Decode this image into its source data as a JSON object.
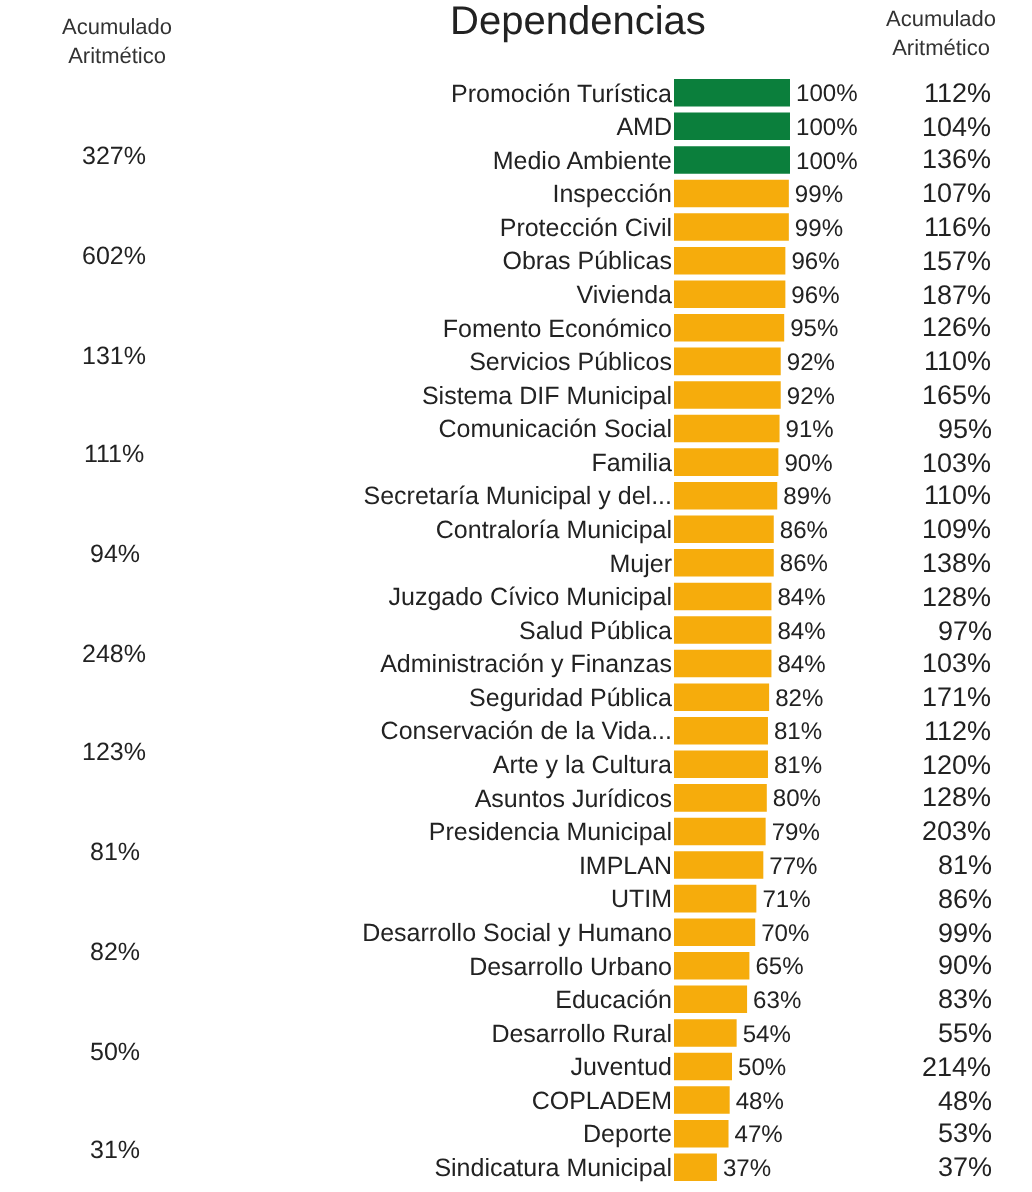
{
  "chart_data": {
    "type": "bar",
    "orientation": "horizontal",
    "title": "Dependencias",
    "categories": [
      "Promoción Turística",
      "AMD",
      "Medio Ambiente",
      "Inspección",
      "Protección Civil",
      "Obras Públicas",
      "Vivienda",
      "Fomento Económico",
      "Servicios Públicos",
      "Sistema DIF Municipal",
      "Comunicación Social",
      "Familia",
      "Secretaría Municipal y del...",
      "Contraloría Municipal",
      "Mujer",
      "Juzgado Cívico Municipal",
      "Salud Pública",
      "Administración y Finanzas",
      "Seguridad Pública",
      "Conservación de la Vida...",
      "Arte y la Cultura",
      "Asuntos Jurídicos",
      "Presidencia Municipal",
      "IMPLAN",
      "UTIM",
      "Desarrollo Social y Humano",
      "Desarrollo Urbano",
      "Educación",
      "Desarrollo Rural",
      "Juventud",
      "COPLADEM",
      "Deporte",
      "Sindicatura Municipal"
    ],
    "values": [
      100,
      100,
      100,
      99,
      99,
      96,
      96,
      95,
      92,
      92,
      91,
      90,
      89,
      86,
      86,
      84,
      84,
      84,
      82,
      81,
      81,
      80,
      79,
      77,
      71,
      70,
      65,
      63,
      54,
      50,
      48,
      47,
      37
    ],
    "value_labels": [
      "100%",
      "100%",
      "100%",
      "99%",
      "99%",
      "96%",
      "96%",
      "95%",
      "92%",
      "92%",
      "91%",
      "90%",
      "89%",
      "86%",
      "86%",
      "84%",
      "84%",
      "84%",
      "82%",
      "81%",
      "81%",
      "80%",
      "79%",
      "77%",
      "71%",
      "70%",
      "65%",
      "63%",
      "54%",
      "50%",
      "48%",
      "47%",
      "37%"
    ],
    "colors": [
      "#0b7f3c",
      "#0b7f3c",
      "#0b7f3c",
      "#f6ac0c",
      "#f6ac0c",
      "#f6ac0c",
      "#f6ac0c",
      "#f6ac0c",
      "#f6ac0c",
      "#f6ac0c",
      "#f6ac0c",
      "#f6ac0c",
      "#f6ac0c",
      "#f6ac0c",
      "#f6ac0c",
      "#f6ac0c",
      "#f6ac0c",
      "#f6ac0c",
      "#f6ac0c",
      "#f6ac0c",
      "#f6ac0c",
      "#f6ac0c",
      "#f6ac0c",
      "#f6ac0c",
      "#f6ac0c",
      "#f6ac0c",
      "#f6ac0c",
      "#f6ac0c",
      "#f6ac0c",
      "#f6ac0c",
      "#f6ac0c",
      "#f6ac0c",
      "#f6ac0c"
    ],
    "tick_labels": "y",
    "annotations": [
      "Acumulado\nAritmético",
      "Acumulado\nAritmético",
      "327%",
      "602%",
      "131%",
      "111%",
      "94%",
      "248%",
      "123%",
      "81%",
      "82%",
      "50%",
      "31%",
      "112%",
      "104%",
      "136%",
      "107%",
      "116%",
      "157%",
      "187%",
      "126%",
      "110%",
      "165%",
      "95%",
      "103%",
      "110%",
      "109%",
      "138%",
      "128%",
      "97%",
      "103%",
      "171%",
      "112%",
      "120%",
      "128%",
      "203%",
      "81%",
      "86%",
      "99%",
      "90%",
      "83%",
      "55%",
      "214%",
      "48%",
      "53%",
      "37%"
    ]
  }
}
